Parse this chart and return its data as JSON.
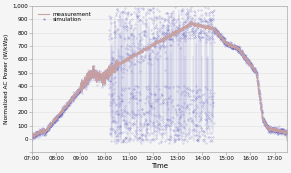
{
  "title": "",
  "xlabel": "Time",
  "ylabel": "Normalized AC Power (W/kWp)",
  "xlim": [
    0,
    630
  ],
  "ylim": [
    -100,
    1000
  ],
  "yticks": [
    -100,
    0,
    100,
    200,
    300,
    400,
    500,
    600,
    700,
    800,
    900,
    1000
  ],
  "ytick_labels": [
    "",
    "0",
    "100",
    "200",
    "300",
    "400",
    "500",
    "600",
    "700",
    "800",
    "900",
    "1,000"
  ],
  "xtick_labels": [
    "07:00",
    "08:00",
    "09:00",
    "10:00",
    "11:00",
    "12:00",
    "13:00",
    "14:00",
    "15:00",
    "16:00",
    "17:00"
  ],
  "measurement_color": "#c8a0a0",
  "simulation_color": "#6060c0",
  "background_color": "#f5f5f5",
  "legend_measurement": "measurement",
  "legend_simulation": "simulation",
  "grid_color": "#e0e0e0"
}
